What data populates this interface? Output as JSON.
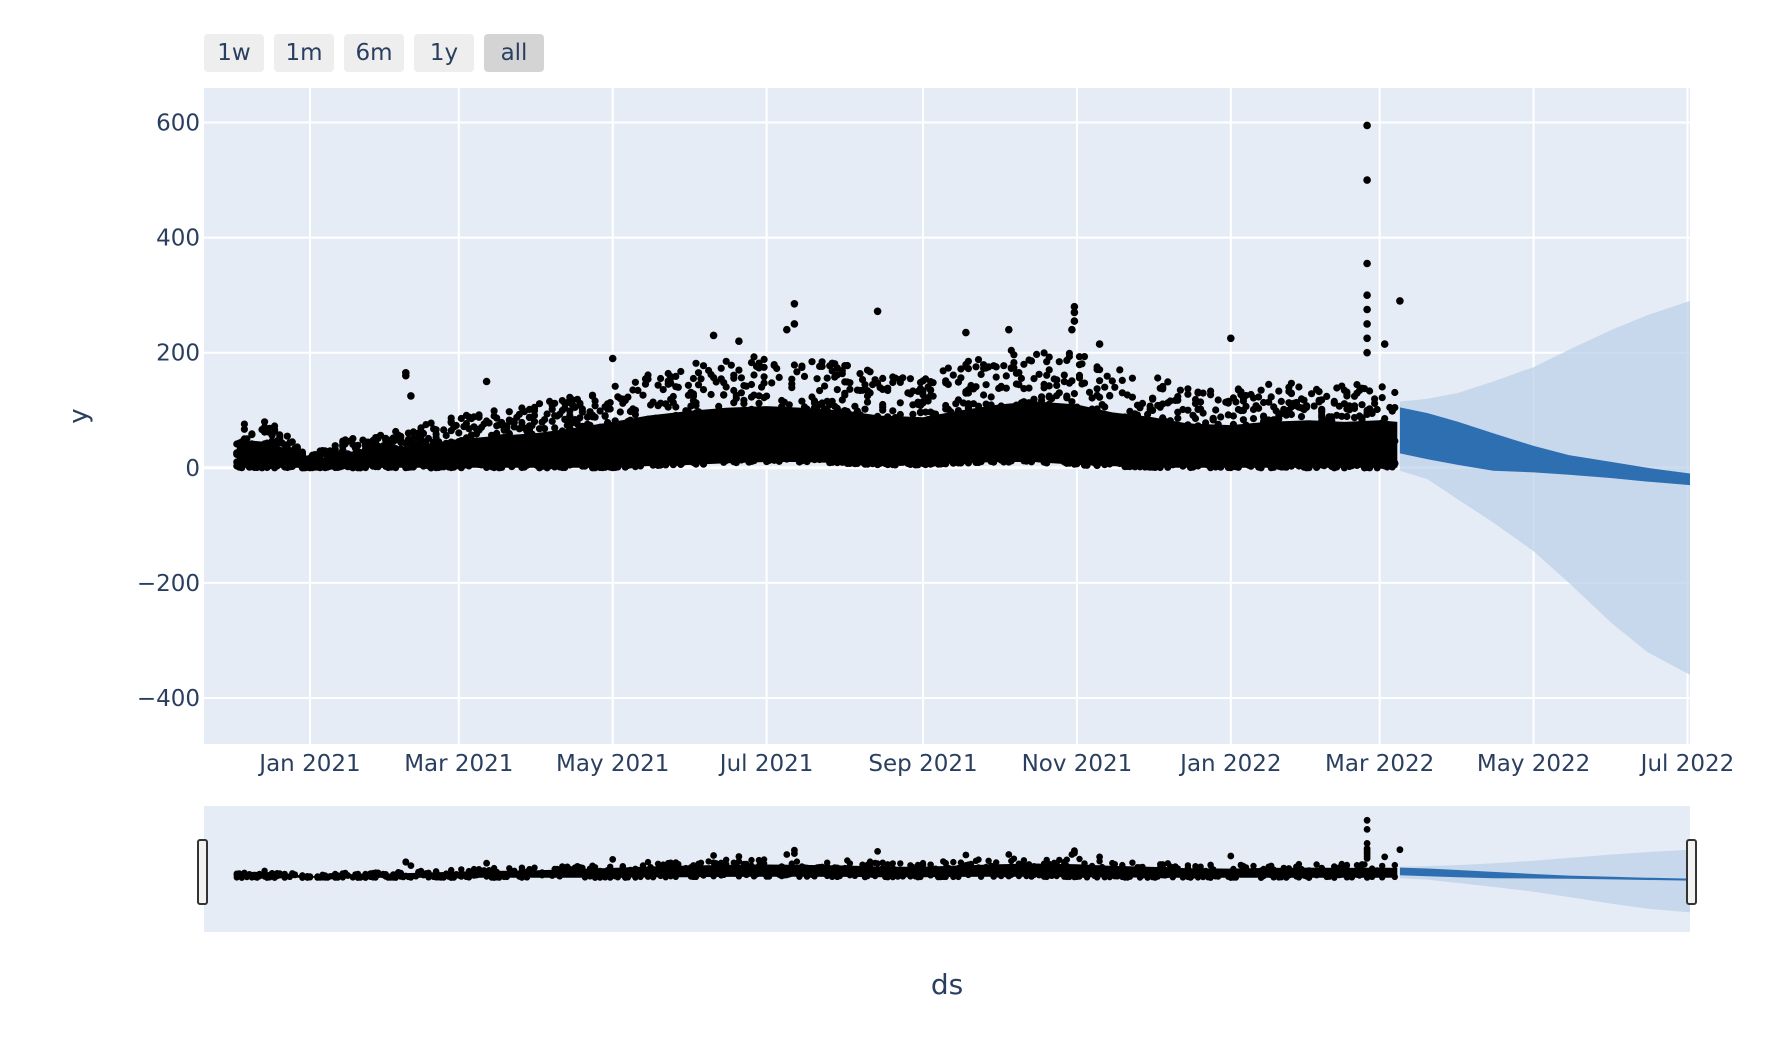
{
  "range_selector": {
    "buttons": [
      {
        "label": "1w",
        "active": false
      },
      {
        "label": "1m",
        "active": false
      },
      {
        "label": "6m",
        "active": false
      },
      {
        "label": "1y",
        "active": false
      },
      {
        "label": "all",
        "active": true
      }
    ]
  },
  "colors": {
    "plot_bg": "#e5ecf6",
    "grid": "#ffffff",
    "observed": "#000000",
    "forecast": "#2e6fb2",
    "forecast_band": "#bcd0e8",
    "text": "#2a3f5f"
  },
  "chart_data": {
    "type": "scatter",
    "title": "",
    "xlabel": "ds",
    "ylabel": "y",
    "xlim": [
      "2020-11-20",
      "2022-07-02"
    ],
    "ylim": [
      -480,
      660
    ],
    "grid": true,
    "range_slider": true,
    "x_ticks": [
      {
        "date": "2021-01-01",
        "label": "Jan 2021"
      },
      {
        "date": "2021-03-01",
        "label": "Mar 2021"
      },
      {
        "date": "2021-05-01",
        "label": "May 2021"
      },
      {
        "date": "2021-07-01",
        "label": "Jul 2021"
      },
      {
        "date": "2021-09-01",
        "label": "Sep 2021"
      },
      {
        "date": "2021-11-01",
        "label": "Nov 2021"
      },
      {
        "date": "2022-01-01",
        "label": "Jan 2022"
      },
      {
        "date": "2022-03-01",
        "label": "Mar 2022"
      },
      {
        "date": "2022-05-01",
        "label": "May 2022"
      },
      {
        "date": "2022-07-01",
        "label": "Jul 2022"
      }
    ],
    "y_ticks": [
      {
        "value": 600,
        "label": "600"
      },
      {
        "value": 400,
        "label": "400"
      },
      {
        "value": 200,
        "label": "200"
      },
      {
        "value": 0,
        "label": "0"
      },
      {
        "value": -200,
        "label": "−200"
      },
      {
        "value": -400,
        "label": "−400"
      }
    ],
    "series": [
      {
        "kind": "observed_envelope",
        "x": [
          "2020-12-03",
          "2020-12-10",
          "2020-12-17",
          "2021-01-01",
          "2021-01-15",
          "2021-02-01",
          "2021-02-15",
          "2021-03-01",
          "2021-03-15",
          "2021-04-01",
          "2021-04-15",
          "2021-05-01",
          "2021-05-15",
          "2021-06-01",
          "2021-06-15",
          "2021-07-01",
          "2021-07-15",
          "2021-08-01",
          "2021-08-15",
          "2021-09-01",
          "2021-09-15",
          "2021-10-01",
          "2021-10-15",
          "2021-11-01",
          "2021-11-15",
          "2021-12-01",
          "2021-12-15",
          "2022-01-01",
          "2022-01-15",
          "2022-02-01",
          "2022-02-15",
          "2022-03-01",
          "2022-03-08"
        ],
        "upper": [
          80,
          85,
          80,
          20,
          50,
          60,
          75,
          90,
          100,
          110,
          125,
          145,
          165,
          180,
          190,
          195,
          190,
          180,
          165,
          160,
          180,
          200,
          210,
          200,
          175,
          160,
          140,
          135,
          145,
          150,
          145,
          150,
          145
        ],
        "lower": [
          0,
          0,
          0,
          0,
          0,
          0,
          0,
          0,
          0,
          0,
          0,
          0,
          3,
          5,
          8,
          10,
          10,
          8,
          5,
          5,
          8,
          10,
          10,
          5,
          3,
          0,
          0,
          0,
          0,
          0,
          0,
          0,
          0
        ]
      },
      {
        "kind": "observed_outliers",
        "points": [
          {
            "x": "2022-02-24",
            "y": 595
          },
          {
            "x": "2022-02-24",
            "y": 500
          },
          {
            "x": "2022-02-24",
            "y": 355
          },
          {
            "x": "2022-02-24",
            "y": 300
          },
          {
            "x": "2022-02-24",
            "y": 275
          },
          {
            "x": "2022-02-24",
            "y": 250
          },
          {
            "x": "2022-02-24",
            "y": 225
          },
          {
            "x": "2022-02-24",
            "y": 200
          },
          {
            "x": "2022-03-09",
            "y": 290
          },
          {
            "x": "2022-03-03",
            "y": 215
          },
          {
            "x": "2021-10-31",
            "y": 280
          },
          {
            "x": "2021-10-31",
            "y": 270
          },
          {
            "x": "2021-10-31",
            "y": 255
          },
          {
            "x": "2021-10-30",
            "y": 240
          },
          {
            "x": "2021-08-14",
            "y": 272
          },
          {
            "x": "2021-07-12",
            "y": 285
          },
          {
            "x": "2021-07-12",
            "y": 250
          },
          {
            "x": "2021-07-09",
            "y": 240
          },
          {
            "x": "2022-01-01",
            "y": 225
          },
          {
            "x": "2021-02-08",
            "y": 165
          },
          {
            "x": "2021-02-08",
            "y": 160
          },
          {
            "x": "2021-02-10",
            "y": 125
          },
          {
            "x": "2021-03-12",
            "y": 150
          },
          {
            "x": "2021-05-01",
            "y": 190
          },
          {
            "x": "2021-06-10",
            "y": 230
          },
          {
            "x": "2021-06-20",
            "y": 220
          },
          {
            "x": "2021-09-18",
            "y": 235
          },
          {
            "x": "2021-10-05",
            "y": 240
          },
          {
            "x": "2021-11-10",
            "y": 215
          }
        ]
      },
      {
        "kind": "forecast",
        "x": [
          "2022-03-09",
          "2022-03-20",
          "2022-04-01",
          "2022-04-15",
          "2022-05-01",
          "2022-05-15",
          "2022-06-01",
          "2022-06-15",
          "2022-07-02"
        ],
        "yhat_upper": [
          105,
          95,
          80,
          60,
          38,
          22,
          10,
          0,
          -10
        ],
        "yhat_lower": [
          25,
          15,
          5,
          -5,
          -8,
          -12,
          -18,
          -24,
          -30
        ],
        "band_upper": [
          115,
          120,
          130,
          150,
          175,
          205,
          240,
          265,
          290
        ],
        "band_lower": [
          -5,
          -20,
          -55,
          -95,
          -145,
          -200,
          -270,
          -320,
          -360
        ]
      }
    ]
  }
}
